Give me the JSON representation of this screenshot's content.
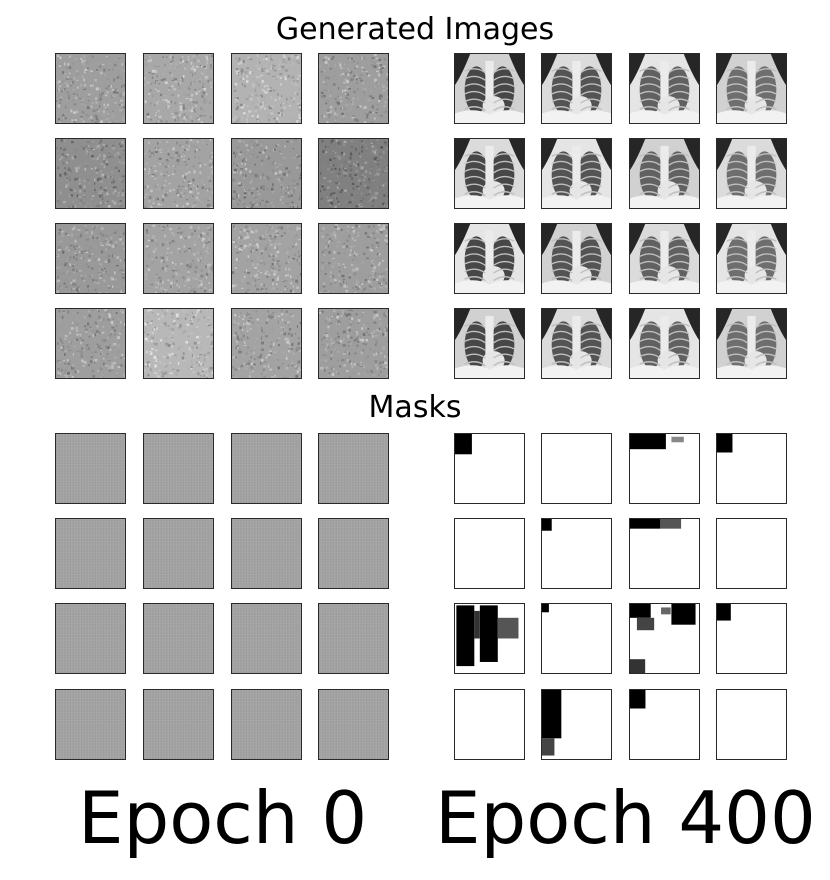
{
  "titles": {
    "generated": "Generated Images",
    "masks": "Masks"
  },
  "epochs": {
    "left": "Epoch 0",
    "right": "Epoch 400"
  },
  "grid": {
    "rows": 4,
    "cols": 4
  },
  "epoch0_noise_brightness": [
    [
      0.62,
      0.66,
      0.7,
      0.62
    ],
    [
      0.56,
      0.64,
      0.6,
      0.5
    ],
    [
      0.6,
      0.64,
      0.64,
      0.62
    ],
    [
      0.62,
      0.72,
      0.64,
      0.62
    ]
  ],
  "epoch400_masks_dark_fraction": [
    [
      0.06,
      0.0,
      0.2,
      0.05
    ],
    [
      0.0,
      0.02,
      0.15,
      0.0
    ],
    [
      0.6,
      0.01,
      0.35,
      0.04
    ],
    [
      0.0,
      0.25,
      0.05,
      0.0
    ]
  ],
  "colors": {
    "background": "#ffffff",
    "text": "#000000",
    "tile_border": "#2a2a2a"
  }
}
